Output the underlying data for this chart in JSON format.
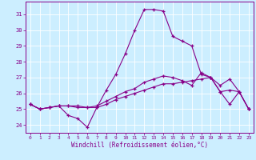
{
  "xlabel": "Windchill (Refroidissement éolien,°C)",
  "xlim": [
    -0.5,
    23.5
  ],
  "ylim": [
    23.5,
    31.8
  ],
  "yticks": [
    24,
    25,
    26,
    27,
    28,
    29,
    30,
    31
  ],
  "xticks": [
    0,
    1,
    2,
    3,
    4,
    5,
    6,
    7,
    8,
    9,
    10,
    11,
    12,
    13,
    14,
    15,
    16,
    17,
    18,
    19,
    20,
    21,
    22,
    23
  ],
  "background_color": "#cceeff",
  "grid_color": "#ffffff",
  "line_color": "#880088",
  "series1": [
    25.3,
    25.0,
    25.1,
    25.2,
    24.6,
    24.4,
    23.85,
    25.1,
    26.2,
    27.2,
    28.5,
    30.0,
    31.3,
    31.3,
    31.2,
    29.6,
    29.3,
    29.0,
    27.2,
    27.0,
    26.1,
    25.3,
    26.1,
    25.0
  ],
  "series2": [
    25.3,
    25.0,
    25.1,
    25.2,
    25.2,
    25.2,
    25.1,
    25.1,
    25.3,
    25.6,
    25.8,
    26.0,
    26.2,
    26.4,
    26.6,
    26.6,
    26.7,
    26.8,
    26.9,
    27.0,
    26.1,
    26.2,
    26.1,
    25.0
  ],
  "series3": [
    25.3,
    25.0,
    25.1,
    25.2,
    25.2,
    25.1,
    25.1,
    25.2,
    25.5,
    25.8,
    26.1,
    26.3,
    26.7,
    26.9,
    27.1,
    27.0,
    26.8,
    26.5,
    27.3,
    27.0,
    26.5,
    26.9,
    26.1,
    25.0
  ]
}
